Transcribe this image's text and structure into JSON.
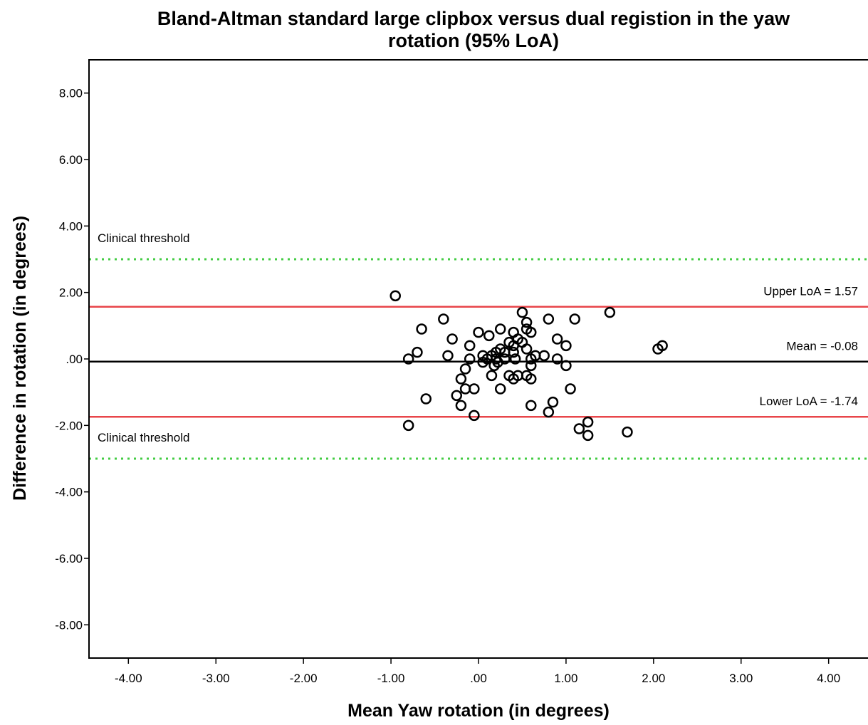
{
  "chart_data": {
    "type": "scatter",
    "title_line1": "Bland-Altman standard large clipbox versus dual registion in the yaw",
    "title_line2": "rotation (95% LoA)",
    "xlabel": "Mean Yaw rotation (in degrees)",
    "ylabel": "Difference in rotation (in degrees)",
    "xlim": [
      -4.45,
      4.45
    ],
    "ylim": [
      -9.0,
      9.0
    ],
    "x_ticks": [
      {
        "value": -4,
        "label": "-4.00"
      },
      {
        "value": -3,
        "label": "-3.00"
      },
      {
        "value": -2,
        "label": "-2.00"
      },
      {
        "value": -1,
        "label": "-1.00"
      },
      {
        "value": 0,
        "label": ".00"
      },
      {
        "value": 1,
        "label": "1.00"
      },
      {
        "value": 2,
        "label": "2.00"
      },
      {
        "value": 3,
        "label": "3.00"
      },
      {
        "value": 4,
        "label": "4.00"
      }
    ],
    "y_ticks": [
      {
        "value": 8,
        "label": "8.00"
      },
      {
        "value": 6,
        "label": "6.00"
      },
      {
        "value": 4,
        "label": "4.00"
      },
      {
        "value": 2,
        "label": "2.00"
      },
      {
        "value": 0,
        "label": ".00"
      },
      {
        "value": -2,
        "label": "-2.00"
      },
      {
        "value": -4,
        "label": "-4.00"
      },
      {
        "value": -6,
        "label": "-6.00"
      },
      {
        "value": -8,
        "label": "-8.00"
      }
    ],
    "reference_lines": [
      {
        "name": "clinical-threshold-upper",
        "y": 3.0,
        "style": "dotted",
        "color": "#44cc44",
        "label": "Clinical threshold",
        "label_align": "left"
      },
      {
        "name": "upper-loa",
        "y": 1.57,
        "style": "solid",
        "color": "#e8454a",
        "label": "Upper LoA = 1.57",
        "label_align": "right"
      },
      {
        "name": "mean",
        "y": -0.08,
        "style": "solid",
        "color": "#000000",
        "label": "Mean = -0.08",
        "label_align": "right"
      },
      {
        "name": "lower-loa",
        "y": -1.74,
        "style": "solid",
        "color": "#e8454a",
        "label": "Lower LoA = -1.74",
        "label_align": "right"
      },
      {
        "name": "clinical-threshold-lower",
        "y": -3.0,
        "style": "dotted",
        "color": "#44cc44",
        "label": "Clinical threshold",
        "label_align": "left"
      }
    ],
    "points": [
      [
        -0.95,
        1.9
      ],
      [
        -0.8,
        0.0
      ],
      [
        -0.7,
        0.2
      ],
      [
        -0.65,
        0.9
      ],
      [
        -0.6,
        -1.2
      ],
      [
        -0.8,
        -2.0
      ],
      [
        -0.4,
        1.2
      ],
      [
        -0.35,
        0.1
      ],
      [
        -0.3,
        0.6
      ],
      [
        -0.25,
        -1.1
      ],
      [
        -0.2,
        -0.6
      ],
      [
        -0.2,
        -1.4
      ],
      [
        -0.15,
        -0.3
      ],
      [
        -0.15,
        -0.9
      ],
      [
        -0.1,
        0.0
      ],
      [
        -0.1,
        0.4
      ],
      [
        -0.05,
        -0.9
      ],
      [
        -0.05,
        -1.7
      ],
      [
        0.0,
        0.8
      ],
      [
        0.05,
        0.1
      ],
      [
        0.05,
        -0.1
      ],
      [
        0.1,
        0.0
      ],
      [
        0.12,
        0.7
      ],
      [
        0.15,
        -0.5
      ],
      [
        0.15,
        0.1
      ],
      [
        0.18,
        -0.2
      ],
      [
        0.2,
        0.0
      ],
      [
        0.2,
        0.2
      ],
      [
        0.22,
        -0.1
      ],
      [
        0.25,
        0.9
      ],
      [
        0.25,
        0.3
      ],
      [
        0.25,
        -0.9
      ],
      [
        0.3,
        0.2
      ],
      [
        0.3,
        0.0
      ],
      [
        0.35,
        0.5
      ],
      [
        0.35,
        -0.5
      ],
      [
        0.4,
        0.8
      ],
      [
        0.4,
        0.4
      ],
      [
        0.4,
        0.2
      ],
      [
        0.4,
        -0.6
      ],
      [
        0.42,
        0.0
      ],
      [
        0.45,
        0.6
      ],
      [
        0.45,
        -0.5
      ],
      [
        0.5,
        1.4
      ],
      [
        0.5,
        0.5
      ],
      [
        0.55,
        1.1
      ],
      [
        0.55,
        0.9
      ],
      [
        0.55,
        0.3
      ],
      [
        0.55,
        -0.5
      ],
      [
        0.6,
        0.8
      ],
      [
        0.6,
        0.0
      ],
      [
        0.6,
        -0.2
      ],
      [
        0.6,
        -0.6
      ],
      [
        0.6,
        -1.4
      ],
      [
        0.65,
        0.1
      ],
      [
        0.75,
        0.1
      ],
      [
        0.8,
        1.2
      ],
      [
        0.8,
        -1.6
      ],
      [
        0.85,
        -1.3
      ],
      [
        0.9,
        0.6
      ],
      [
        0.9,
        0.0
      ],
      [
        1.0,
        0.4
      ],
      [
        1.0,
        -0.2
      ],
      [
        1.05,
        -0.9
      ],
      [
        1.1,
        1.2
      ],
      [
        1.15,
        -2.1
      ],
      [
        1.25,
        -1.9
      ],
      [
        1.25,
        -2.3
      ],
      [
        1.5,
        1.4
      ],
      [
        1.7,
        -2.2
      ],
      [
        2.05,
        0.3
      ],
      [
        2.1,
        0.4
      ]
    ]
  }
}
